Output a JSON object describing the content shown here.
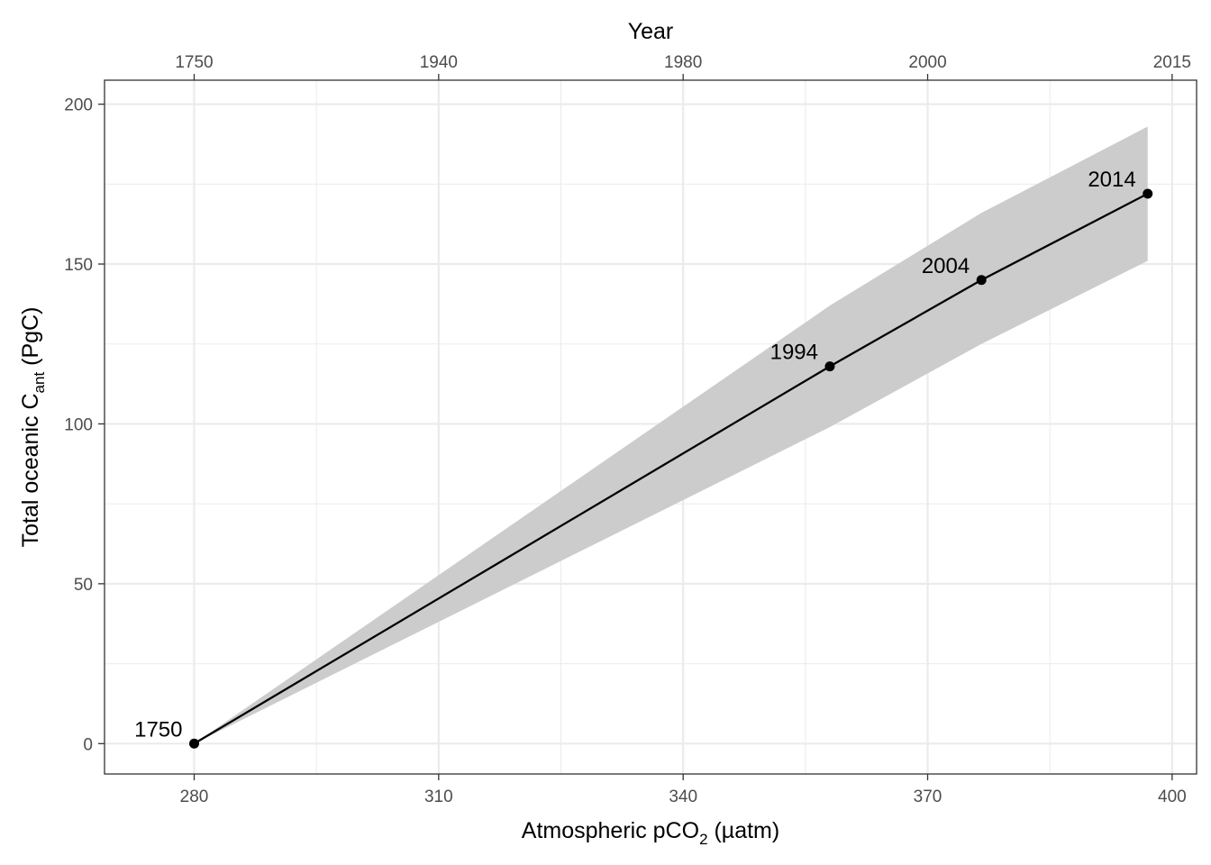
{
  "chart_data": {
    "type": "line",
    "x_axis": {
      "label_main": "Atmospheric pCO",
      "label_sub": "2",
      "label_unit": " (µatm)",
      "ticks": [
        280,
        310,
        340,
        370,
        400
      ],
      "minor_ticks": [
        295,
        325,
        355,
        385
      ],
      "range": [
        269,
        403
      ]
    },
    "x2_axis": {
      "label": "Year",
      "ticks": [
        {
          "label": "1750",
          "x": 280
        },
        {
          "label": "1940",
          "x": 310
        },
        {
          "label": "1980",
          "x": 340
        },
        {
          "label": "2000",
          "x": 370
        },
        {
          "label": "2015",
          "x": 400
        }
      ]
    },
    "y_axis": {
      "label_main": "Total oceanic C",
      "label_sub": "ant",
      "label_unit": " (PgC)",
      "ticks": [
        0,
        50,
        100,
        150,
        200
      ],
      "minor_ticks": [
        25,
        75,
        125,
        175
      ],
      "range": [
        -9.5,
        207.5
      ]
    },
    "series": [
      {
        "points": [
          {
            "x": 280,
            "y": 0,
            "label": "1750"
          },
          {
            "x": 358,
            "y": 118,
            "label": "1994"
          },
          {
            "x": 376.6,
            "y": 145,
            "label": "2004"
          },
          {
            "x": 397,
            "y": 172,
            "label": "2014"
          }
        ],
        "ribbon": {
          "lower": [
            0,
            99,
            125,
            151
          ],
          "upper": [
            0,
            137,
            166,
            193
          ]
        }
      }
    ],
    "grid": true,
    "colors": {
      "line": "#000000",
      "ribbon": "#cccccc",
      "grid": "#ebebeb",
      "panel_border": "#333333"
    }
  }
}
